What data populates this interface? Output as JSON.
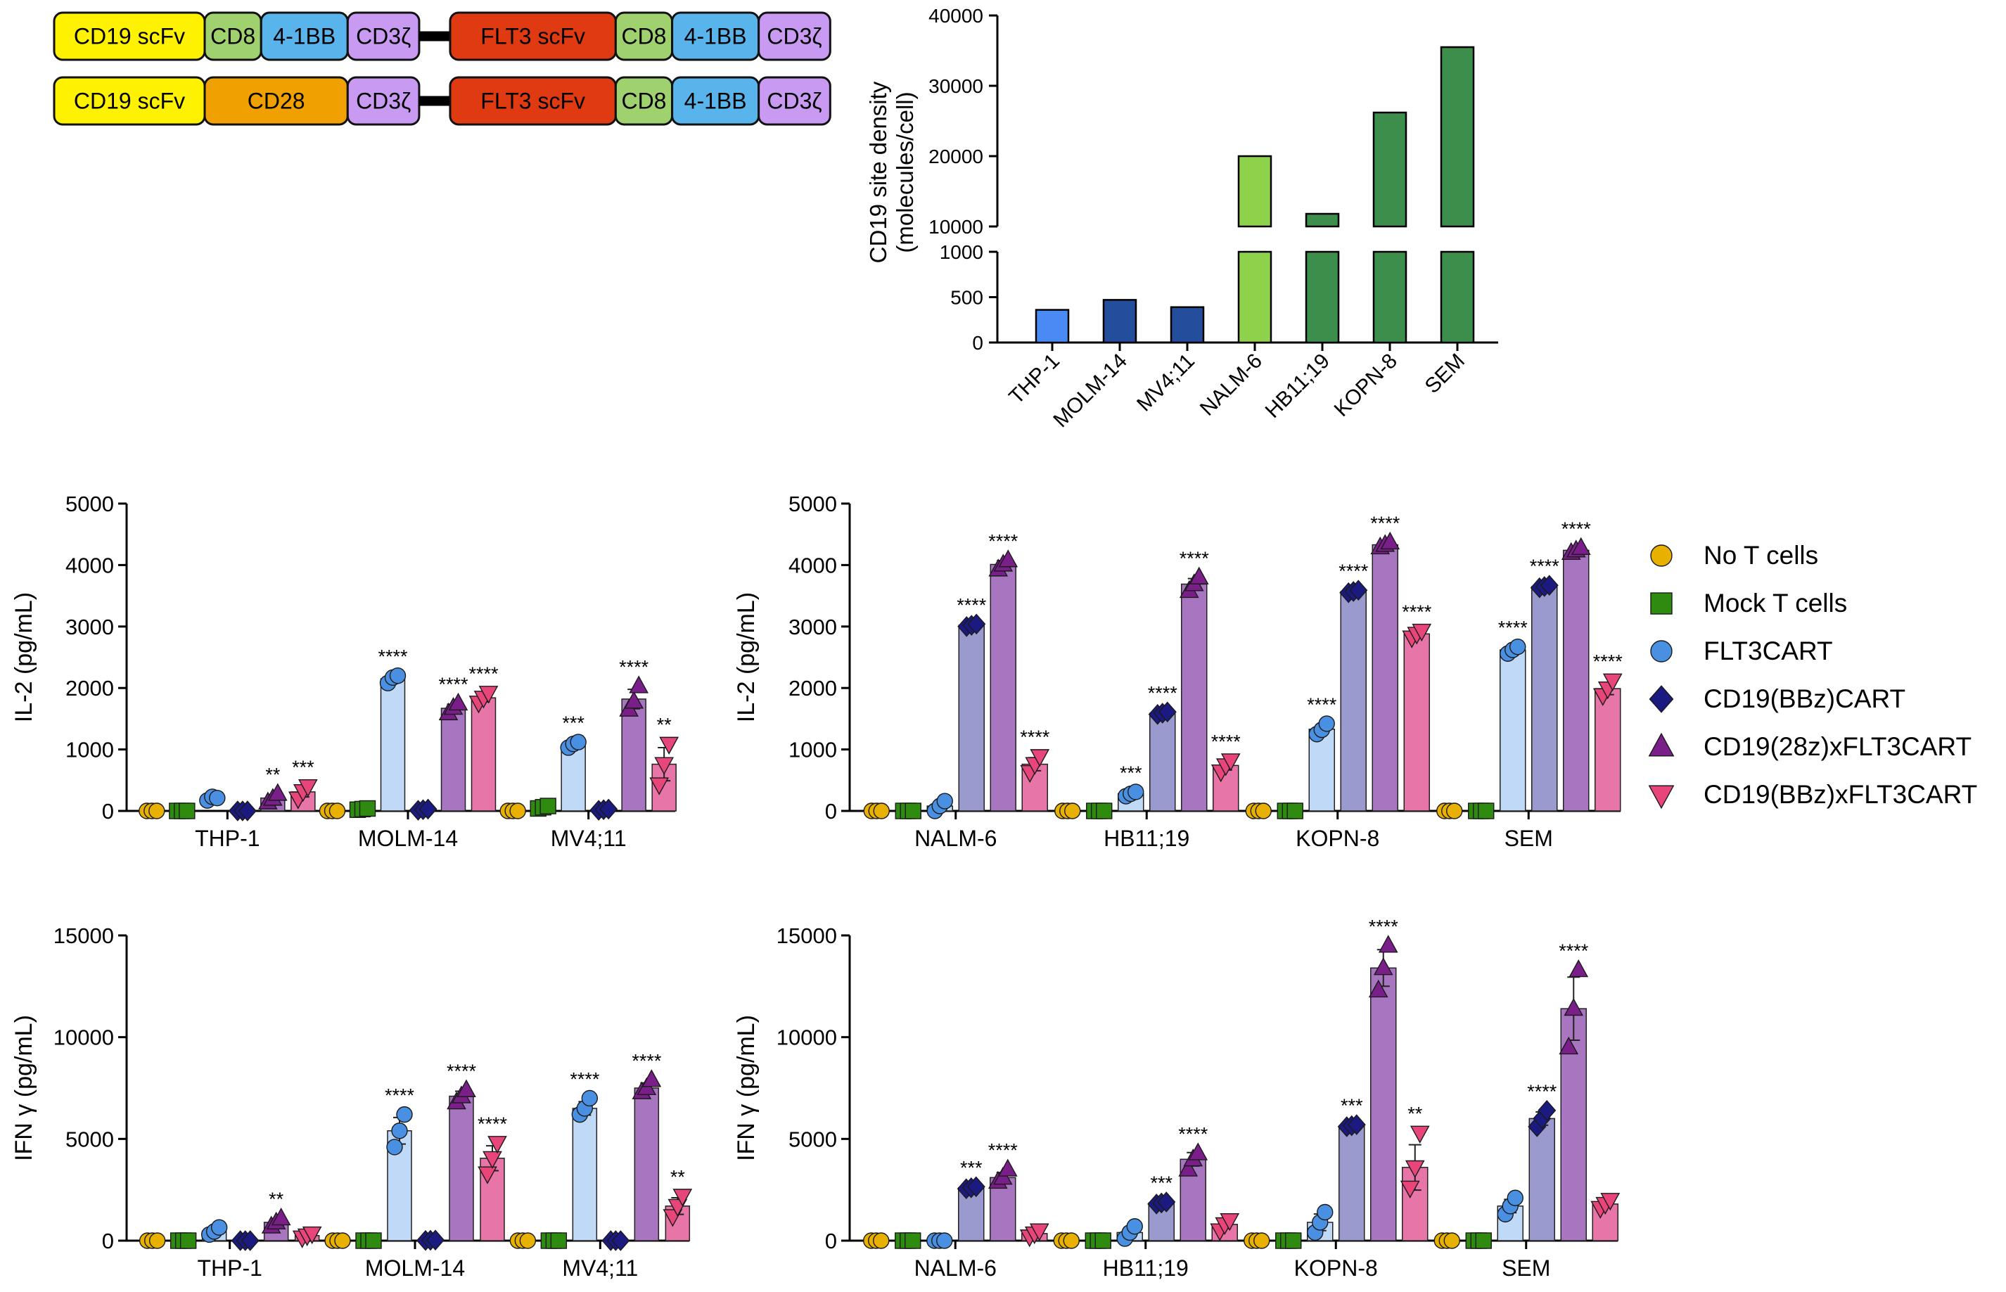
{
  "constructs": [
    [
      {
        "label": "CD19 scFv",
        "color": "#FFF200",
        "w": 2
      },
      {
        "label": "CD8",
        "color": "#9FD16E",
        "w": 0.75
      },
      {
        "label": "4-1BB",
        "color": "#58B4EB",
        "w": 1.15
      },
      {
        "label": "CD3ζ",
        "color": "#C89AF2",
        "w": 0.95
      },
      {
        "label": "FLT3 scFv",
        "color": "#E03A12",
        "w": 2.2
      },
      {
        "label": "CD8",
        "color": "#9FD16E",
        "w": 0.75
      },
      {
        "label": "4-1BB",
        "color": "#58B4EB",
        "w": 1.15
      },
      {
        "label": "CD3ζ",
        "color": "#C89AF2",
        "w": 0.95
      }
    ],
    [
      {
        "label": "CD19 scFv",
        "color": "#FFF200",
        "w": 2
      },
      {
        "label": "CD28",
        "color": "#F0A000",
        "w": 1.9
      },
      {
        "label": "CD3ζ",
        "color": "#C89AF2",
        "w": 0.95
      },
      {
        "label": "FLT3 scFv",
        "color": "#E03A12",
        "w": 2.2
      },
      {
        "label": "CD8",
        "color": "#9FD16E",
        "w": 0.75
      },
      {
        "label": "4-1BB",
        "color": "#58B4EB",
        "w": 1.15
      },
      {
        "label": "CD3ζ",
        "color": "#C89AF2",
        "w": 0.95
      }
    ]
  ],
  "legend": [
    {
      "label": "No T cells",
      "marker": "circle",
      "color": "#E8B000"
    },
    {
      "label": "Mock T cells",
      "marker": "square",
      "color": "#2E8B10"
    },
    {
      "label": "FLT3CART",
      "marker": "circle",
      "color": "#4A90E2"
    },
    {
      "label": "CD19(BBz)CART",
      "marker": "diamond",
      "color": "#1A1A80"
    },
    {
      "label": "CD19(28z)xFLT3CART",
      "marker": "triangle-up",
      "color": "#7A1E8A"
    },
    {
      "label": "CD19(BBz)xFLT3CART",
      "marker": "triangle-down",
      "color": "#E8457A"
    }
  ],
  "group_colors": {
    "bar_fill": [
      "#E8B000",
      "#2E8B10",
      "#BFD9F7",
      "#9A9ACF",
      "#A876C0",
      "#E875A8"
    ],
    "marker": [
      "#E8B000",
      "#2E8B10",
      "#4A90E2",
      "#1A1A80",
      "#7A1E8A",
      "#E8457A"
    ]
  },
  "chart_data": [
    {
      "id": "density",
      "type": "bar",
      "ylabel": [
        "CD19 site density",
        "(molecules/cell)"
      ],
      "categories": [
        "THP-1",
        "MOLM-14",
        "MV4;11",
        "NALM-6",
        "HB11;19",
        "KOPN-8",
        "SEM"
      ],
      "values": [
        360,
        470,
        390,
        20000,
        11800,
        26200,
        35500
      ],
      "colors": [
        "#4A8AF4",
        "#244E9C",
        "#244E9C",
        "#8DD24A",
        "#3C8E4A",
        "#3C8E4A",
        "#3C8E4A"
      ],
      "axis_break": {
        "lower": [
          0,
          1000
        ],
        "upper": [
          10000,
          40000
        ]
      },
      "yticks_lower": [
        "0",
        "500",
        "1000"
      ],
      "yticks_upper": [
        "10000",
        "20000",
        "30000",
        "40000"
      ]
    },
    {
      "id": "il2-aml",
      "type": "bar",
      "ylabel": "IL-2 (pg/mL)",
      "ylim": [
        0,
        5000
      ],
      "yticks": [
        "0",
        "1000",
        "2000",
        "3000",
        "4000",
        "5000"
      ],
      "categories": [
        "THP-1",
        "MOLM-14",
        "MV4;11"
      ],
      "groups": [
        {
          "means": [
            0,
            0,
            0,
            0,
            210,
            310
          ],
          "points": [
            [
              0,
              0,
              0
            ],
            [
              0,
              0,
              0
            ],
            [
              170,
              230,
              210
            ],
            [
              0,
              0,
              0
            ],
            [
              140,
              200,
              280
            ],
            [
              200,
              320,
              400
            ]
          ],
          "sig": [
            "",
            "",
            "",
            "",
            "**",
            "***"
          ]
        },
        {
          "means": [
            0,
            30,
            2150,
            20,
            1670,
            1840
          ],
          "points": [
            [
              0,
              0,
              0
            ],
            [
              20,
              30,
              40
            ],
            [
              2080,
              2170,
              2200
            ],
            [
              10,
              20,
              30
            ],
            [
              1590,
              1680,
              1750
            ],
            [
              1760,
              1840,
              1920
            ]
          ],
          "sig": [
            "",
            "",
            "****",
            "",
            "****",
            "****"
          ]
        },
        {
          "means": [
            0,
            60,
            1080,
            20,
            1820,
            760
          ],
          "points": [
            [
              0,
              0,
              0
            ],
            [
              40,
              60,
              80
            ],
            [
              1030,
              1090,
              1120
            ],
            [
              10,
              20,
              30
            ],
            [
              1650,
              1780,
              2030
            ],
            [
              430,
              760,
              1090
            ]
          ],
          "sig": [
            "",
            "",
            "***",
            "",
            "****",
            "**"
          ]
        }
      ]
    },
    {
      "id": "il2-all",
      "type": "bar",
      "ylabel": "IL-2 (pg/mL)",
      "ylim": [
        0,
        5000
      ],
      "yticks": [
        "0",
        "1000",
        "2000",
        "3000",
        "4000",
        "5000"
      ],
      "categories": [
        "NALM-6",
        "HB11;19",
        "KOPN-8",
        "SEM"
      ],
      "groups": [
        {
          "means": [
            0,
            0,
            80,
            3020,
            4010,
            760
          ],
          "points": [
            [
              0,
              0,
              0
            ],
            [
              0,
              0,
              0
            ],
            [
              0,
              80,
              160
            ],
            [
              3000,
              3020,
              3040
            ],
            [
              3930,
              4010,
              4080
            ],
            [
              630,
              760,
              890
            ]
          ],
          "sig": [
            "",
            "",
            "",
            "****",
            "****",
            "****"
          ]
        },
        {
          "means": [
            0,
            0,
            280,
            1590,
            3690,
            740
          ],
          "points": [
            [
              0,
              0,
              0
            ],
            [
              0,
              0,
              0
            ],
            [
              240,
              280,
              310
            ],
            [
              1570,
              1590,
              1610
            ],
            [
              3580,
              3690,
              3800
            ],
            [
              640,
              740,
              820
            ]
          ],
          "sig": [
            "",
            "",
            "***",
            "****",
            "****",
            "****"
          ]
        },
        {
          "means": [
            0,
            0,
            1330,
            3570,
            4330,
            2880
          ],
          "points": [
            [
              0,
              0,
              0
            ],
            [
              0,
              0,
              0
            ],
            [
              1250,
              1320,
              1420
            ],
            [
              3550,
              3570,
              3590
            ],
            [
              4290,
              4330,
              4370
            ],
            [
              2820,
              2880,
              2930
            ]
          ],
          "sig": [
            "",
            "",
            "****",
            "****",
            "****",
            "****"
          ]
        },
        {
          "means": [
            0,
            0,
            2620,
            3650,
            4240,
            1990
          ],
          "points": [
            [
              0,
              0,
              0
            ],
            [
              0,
              0,
              0
            ],
            [
              2560,
              2620,
              2670
            ],
            [
              3630,
              3650,
              3670
            ],
            [
              4200,
              4240,
              4280
            ],
            [
              1880,
              1990,
              2120
            ]
          ],
          "sig": [
            "",
            "",
            "****",
            "****",
            "****",
            "****"
          ]
        }
      ]
    },
    {
      "id": "ifng-aml",
      "type": "bar",
      "ylabel": "IFN γ (pg/mL)",
      "ylim": [
        0,
        15000
      ],
      "yticks": [
        "0",
        "5000",
        "10000",
        "15000"
      ],
      "categories": [
        "THP-1",
        "MOLM-14",
        "MV4;11"
      ],
      "groups": [
        {
          "means": [
            0,
            0,
            450,
            0,
            900,
            250
          ],
          "points": [
            [
              0,
              0,
              0
            ],
            [
              0,
              0,
              0
            ],
            [
              300,
              450,
              650
            ],
            [
              0,
              0,
              0
            ],
            [
              700,
              900,
              1100
            ],
            [
              150,
              250,
              350
            ]
          ],
          "sig": [
            "",
            "",
            "",
            "",
            "**",
            ""
          ]
        },
        {
          "means": [
            0,
            0,
            5400,
            20,
            7100,
            4050
          ],
          "points": [
            [
              0,
              0,
              0
            ],
            [
              0,
              0,
              0
            ],
            [
              4600,
              5400,
              6200
            ],
            [
              10,
              20,
              30
            ],
            [
              6800,
              7100,
              7400
            ],
            [
              3300,
              4050,
              4800
            ]
          ],
          "sig": [
            "",
            "",
            "****",
            "",
            "****",
            "****"
          ]
        },
        {
          "means": [
            0,
            0,
            6500,
            0,
            7500,
            1700
          ],
          "points": [
            [
              0,
              0,
              0
            ],
            [
              0,
              0,
              0
            ],
            [
              6200,
              6500,
              7000
            ],
            [
              0,
              0,
              0
            ],
            [
              7300,
              7500,
              7900
            ],
            [
              1200,
              1700,
              2200
            ]
          ],
          "sig": [
            "",
            "",
            "****",
            "",
            "****",
            "**"
          ]
        }
      ]
    },
    {
      "id": "ifng-all",
      "type": "bar",
      "ylabel": "IFN γ (pg/mL)",
      "ylim": [
        0,
        15000
      ],
      "yticks": [
        "0",
        "5000",
        "10000",
        "15000"
      ],
      "categories": [
        "NALM-6",
        "HB11;19",
        "KOPN-8",
        "SEM"
      ],
      "groups": [
        {
          "means": [
            0,
            0,
            0,
            2600,
            3100,
            350
          ],
          "points": [
            [
              0,
              0,
              0
            ],
            [
              0,
              0,
              0
            ],
            [
              0,
              0,
              0
            ],
            [
              2550,
              2600,
              2650
            ],
            [
              2900,
              3100,
              3500
            ],
            [
              200,
              350,
              500
            ]
          ],
          "sig": [
            "",
            "",
            "",
            "***",
            "****",
            ""
          ]
        },
        {
          "means": [
            0,
            0,
            400,
            1850,
            4000,
            800
          ],
          "points": [
            [
              0,
              0,
              0
            ],
            [
              0,
              0,
              0
            ],
            [
              100,
              400,
              700
            ],
            [
              1800,
              1850,
              1900
            ],
            [
              3500,
              4000,
              4300
            ],
            [
              500,
              800,
              1000
            ]
          ],
          "sig": [
            "",
            "",
            "",
            "***",
            "****",
            ""
          ]
        },
        {
          "means": [
            0,
            0,
            900,
            5650,
            13400,
            3600
          ],
          "points": [
            [
              0,
              0,
              0
            ],
            [
              0,
              0,
              0
            ],
            [
              400,
              900,
              1400
            ],
            [
              5600,
              5650,
              5700
            ],
            [
              12300,
              13400,
              14500
            ],
            [
              2600,
              3600,
              5300
            ]
          ],
          "sig": [
            "",
            "",
            "",
            "***",
            "****",
            "**"
          ]
        },
        {
          "means": [
            0,
            0,
            1700,
            6000,
            11400,
            1800
          ],
          "points": [
            [
              0,
              0,
              0
            ],
            [
              0,
              0,
              0
            ],
            [
              1300,
              1700,
              2100
            ],
            [
              5600,
              6000,
              6400
            ],
            [
              9500,
              11400,
              13300
            ],
            [
              1600,
              1800,
              2000
            ]
          ],
          "sig": [
            "",
            "",
            "",
            "****",
            "****",
            ""
          ]
        }
      ]
    }
  ]
}
